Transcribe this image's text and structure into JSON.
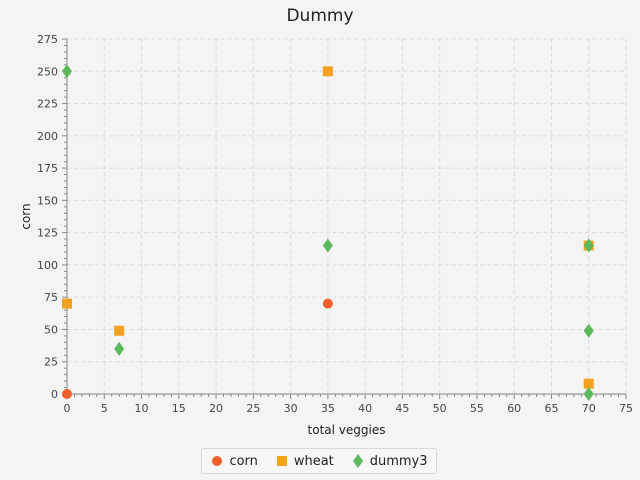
{
  "chart_data": {
    "type": "scatter",
    "title": "Dummy",
    "xlabel": "total veggies",
    "ylabel": "corn",
    "xlim": [
      0,
      75
    ],
    "ylim": [
      0,
      275
    ],
    "xticks": [
      0,
      5,
      10,
      15,
      20,
      25,
      30,
      35,
      40,
      45,
      50,
      55,
      60,
      65,
      70,
      75
    ],
    "yticks": [
      0,
      25,
      50,
      75,
      100,
      125,
      150,
      175,
      200,
      225,
      250,
      275
    ],
    "grid": true,
    "legend_position": "bottom",
    "series": [
      {
        "name": "corn",
        "marker": "circle",
        "color": "#ee5f2c",
        "points": [
          [
            0,
            0
          ],
          [
            35,
            70
          ]
        ]
      },
      {
        "name": "wheat",
        "marker": "square",
        "color": "#f4a11f",
        "points": [
          [
            0,
            70
          ],
          [
            7,
            49
          ],
          [
            35,
            250
          ],
          [
            70,
            115
          ],
          [
            70,
            8
          ]
        ]
      },
      {
        "name": "dummy3",
        "marker": "diamond",
        "color": "#5cb85c",
        "points": [
          [
            0,
            250
          ],
          [
            7,
            35
          ],
          [
            35,
            115
          ],
          [
            70,
            115
          ],
          [
            70,
            49
          ],
          [
            70,
            0
          ]
        ]
      }
    ]
  }
}
